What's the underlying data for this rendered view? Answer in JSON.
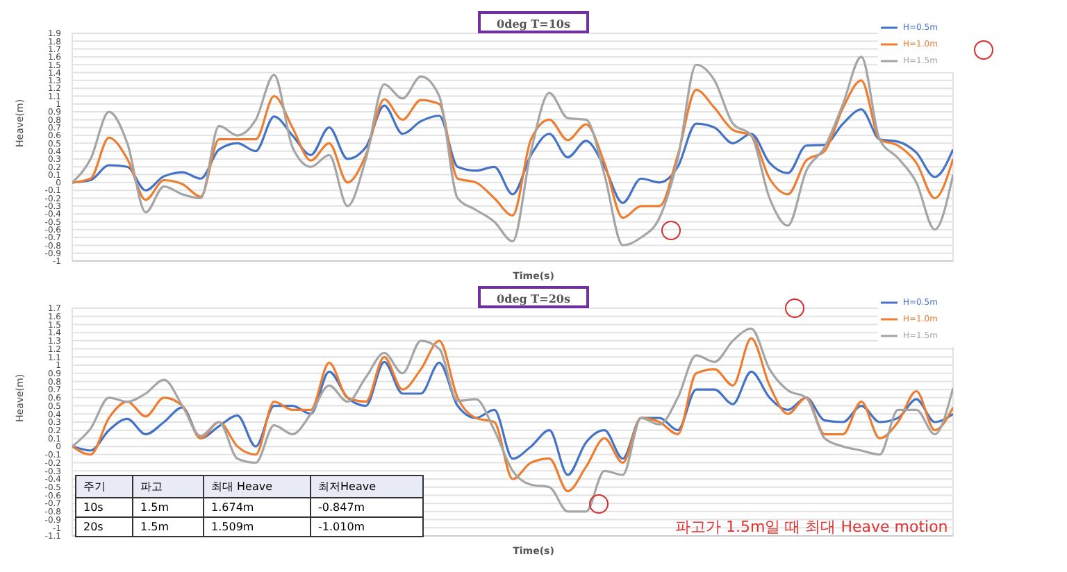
{
  "chart_data": [
    {
      "type": "line",
      "title": "0deg T=10s",
      "xlabel": "Time(s)",
      "ylabel": "Heave(m)",
      "categories": [
        null,
        null,
        null,
        null,
        null,
        null,
        null,
        null,
        null,
        null,
        null,
        null,
        null,
        null,
        null,
        null,
        null,
        null,
        null,
        null,
        null,
        null,
        null,
        null,
        null,
        null,
        null,
        null,
        null,
        null,
        null,
        null,
        null,
        null,
        null,
        null,
        null,
        null,
        null,
        null,
        null,
        null,
        null,
        null,
        null,
        null,
        null,
        null,
        null
      ],
      "ylim": [
        -1,
        1.9
      ],
      "yticks": [
        -1,
        -0.9,
        -0.8,
        -0.7,
        -0.6,
        -0.5,
        -0.4,
        -0.3,
        -0.2,
        -0.1,
        0,
        0.1,
        0.2,
        0.3,
        0.4,
        0.5,
        0.6,
        0.7,
        0.8,
        0.9,
        1,
        1.1,
        1.2,
        1.3,
        1.4,
        1.5,
        1.6,
        1.7,
        1.8,
        1.9
      ],
      "tick_labels": "y",
      "grid": true,
      "legend": "top right",
      "series": [
        {
          "name": "H=0.5m",
          "color": "#4472c4",
          "values": [
            0,
            0.03,
            0.22,
            0.2,
            -0.1,
            0.08,
            0.13,
            0.05,
            0.42,
            0.5,
            0.4,
            0.84,
            0.6,
            0.35,
            0.7,
            0.3,
            0.45,
            0.98,
            0.62,
            0.78,
            0.85,
            0.2,
            0.15,
            0.2,
            -0.15,
            0.35,
            0.62,
            0.32,
            0.53,
            0.2,
            -0.26,
            0.05,
            0,
            0.2,
            0.75,
            0.7,
            0.5,
            0.62,
            0.25,
            0.12,
            0.47,
            0.48,
            0.75,
            0.93,
            0.55,
            0.52,
            0.38,
            0.07,
            0.42
          ]
        },
        {
          "name": "H=1.0m",
          "color": "#ed7d31",
          "values": [
            0,
            0.05,
            0.57,
            0.3,
            -0.22,
            0.03,
            -0.02,
            -0.18,
            0.55,
            0.55,
            0.55,
            1.1,
            0.7,
            0.28,
            0.5,
            0,
            0.35,
            1.06,
            0.8,
            1.05,
            1.0,
            0.05,
            0,
            -0.2,
            -0.42,
            0.55,
            0.8,
            0.54,
            0.74,
            0.25,
            -0.45,
            -0.3,
            -0.3,
            0.35,
            1.18,
            0.95,
            0.67,
            0.6,
            0.05,
            -0.15,
            0.28,
            0.4,
            0.95,
            1.3,
            0.55,
            0.47,
            0.25,
            -0.2,
            0.3
          ]
        },
        {
          "name": "H=1.5m",
          "color": "#a5a5a5",
          "values": [
            0,
            0.3,
            0.9,
            0.5,
            -0.38,
            -0.05,
            -0.15,
            -0.2,
            0.72,
            0.6,
            0.8,
            1.37,
            0.45,
            0.2,
            0.35,
            -0.3,
            0.3,
            1.25,
            1.07,
            1.35,
            1.1,
            -0.2,
            -0.35,
            -0.5,
            -0.75,
            0.4,
            1.14,
            0.82,
            0.8,
            0.1,
            -0.8,
            -0.7,
            -0.45,
            0.3,
            1.5,
            1.3,
            0.75,
            0.6,
            -0.2,
            -0.55,
            0.15,
            0.45,
            1.0,
            1.6,
            0.55,
            0.31,
            0,
            -0.6,
            0.1
          ]
        }
      ]
    },
    {
      "type": "line",
      "title": "0deg T=20s",
      "xlabel": "Time(s)",
      "ylabel": "Heave(m)",
      "categories": [
        null,
        null,
        null,
        null,
        null,
        null,
        null,
        null,
        null,
        null,
        null,
        null,
        null,
        null,
        null,
        null,
        null,
        null,
        null,
        null,
        null,
        null,
        null,
        null,
        null,
        null,
        null,
        null,
        null,
        null,
        null,
        null,
        null,
        null,
        null,
        null,
        null,
        null,
        null,
        null,
        null,
        null,
        null,
        null,
        null,
        null,
        null,
        null,
        null
      ],
      "ylim": [
        -1.1,
        1.7
      ],
      "yticks": [
        -1.1,
        -1,
        -0.9,
        -0.8,
        -0.7,
        -0.6,
        -0.5,
        -0.4,
        -0.3,
        -0.2,
        -0.1,
        0,
        0.1,
        0.2,
        0.3,
        0.4,
        0.5,
        0.6,
        0.7,
        0.8,
        0.9,
        1,
        1.1,
        1.2,
        1.3,
        1.4,
        1.5,
        1.6,
        1.7
      ],
      "tick_labels": "y",
      "grid": true,
      "legend": "top right",
      "annotations": [
        "주기",
        "파고",
        "최대 Heave",
        "최저Heave",
        "10s",
        "1.5m",
        "1.674m",
        "-0.847m",
        "20s",
        "1.5m",
        "1.509m",
        "-1.010m",
        "파고가 1.5m일 때 최대 Heave motion"
      ],
      "series": [
        {
          "name": "H=0.5m",
          "color": "#4472c4",
          "values": [
            0,
            -0.05,
            0.2,
            0.34,
            0.15,
            0.3,
            0.48,
            0.1,
            0.25,
            0.38,
            0,
            0.5,
            0.5,
            0.4,
            0.92,
            0.6,
            0.5,
            1.04,
            0.65,
            0.65,
            1.03,
            0.5,
            0.35,
            0.45,
            -0.15,
            0,
            0.2,
            -0.35,
            0.05,
            0.2,
            -0.15,
            0.35,
            0.35,
            0.2,
            0.7,
            0.7,
            0.52,
            0.92,
            0.6,
            0.45,
            0.6,
            0.32,
            0.3,
            0.5,
            0.3,
            0.35,
            0.58,
            0.3,
            0.4
          ]
        },
        {
          "name": "H=1.0m",
          "color": "#ed7d31",
          "values": [
            0,
            -0.1,
            0.35,
            0.55,
            0.37,
            0.6,
            0.5,
            0.1,
            0.3,
            0,
            -0.1,
            0.55,
            0.45,
            0.45,
            1.03,
            0.6,
            0.55,
            1.1,
            0.7,
            0.95,
            1.3,
            0.6,
            0.35,
            0.3,
            -0.4,
            -0.2,
            -0.15,
            -0.55,
            -0.25,
            0.1,
            -0.2,
            0.35,
            0.3,
            0.15,
            0.9,
            0.95,
            0.75,
            1.33,
            0.75,
            0.4,
            0.6,
            0.15,
            0.15,
            0.55,
            0.1,
            0.3,
            0.68,
            0.2,
            0.48
          ]
        },
        {
          "name": "H=1.5m",
          "color": "#a5a5a5",
          "values": [
            0,
            0.22,
            0.6,
            0.55,
            0.65,
            0.82,
            0.5,
            0.13,
            0.3,
            -0.15,
            -0.2,
            0.26,
            0.15,
            0.4,
            0.75,
            0.55,
            0.85,
            1.15,
            0.9,
            1.3,
            1.2,
            0.56,
            0.58,
            0.2,
            -0.3,
            -0.47,
            -0.5,
            -0.8,
            -0.8,
            -0.3,
            -0.35,
            0.35,
            0.27,
            0.6,
            1.12,
            1.04,
            1.3,
            1.45,
            0.95,
            0.69,
            0.6,
            0.1,
            0,
            -0.05,
            -0.1,
            0.45,
            0.45,
            0.15,
            0.72
          ]
        }
      ]
    }
  ]
}
